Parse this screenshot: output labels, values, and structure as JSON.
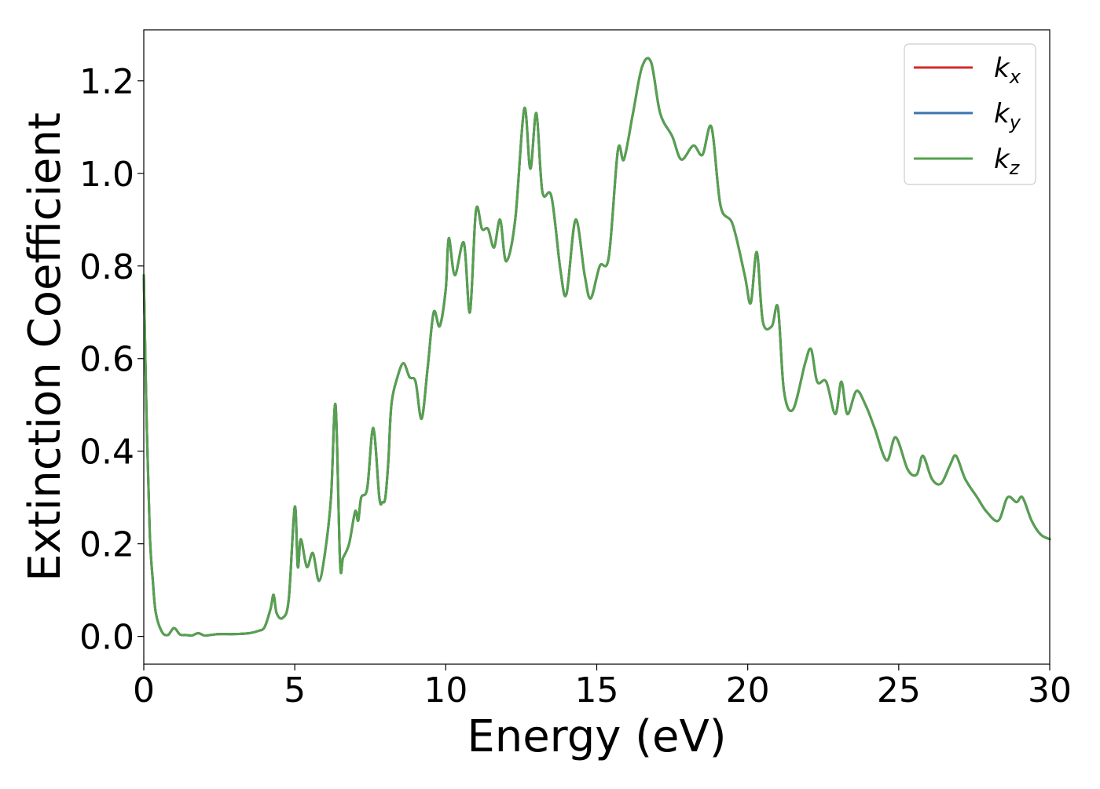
{
  "chart_data": {
    "type": "line",
    "title": "",
    "xlabel": "Energy (eV)",
    "ylabel": "Extinction Coefficient",
    "xlim": [
      0,
      30
    ],
    "ylim": [
      -0.06,
      1.31
    ],
    "xticks": [
      0,
      5,
      10,
      15,
      20,
      25,
      30
    ],
    "xtick_labels": [
      "0",
      "5",
      "10",
      "15",
      "20",
      "25",
      "30"
    ],
    "yticks": [
      0.0,
      0.2,
      0.4,
      0.6,
      0.8,
      1.0,
      1.2
    ],
    "ytick_labels": [
      "0.0",
      "0.2",
      "0.4",
      "0.6",
      "0.8",
      "1.0",
      "1.2"
    ],
    "grid": false,
    "legend": {
      "placement": "top-right",
      "entries": [
        {
          "base": "k",
          "sub": "x",
          "color": "#d62728"
        },
        {
          "base": "k",
          "sub": "y",
          "color": "#3b75af"
        },
        {
          "base": "k",
          "sub": "z",
          "color": "#55a14e"
        }
      ]
    },
    "x": [
      0.0,
      0.1,
      0.2,
      0.3,
      0.4,
      0.6,
      0.8,
      1.0,
      1.2,
      1.4,
      1.6,
      1.8,
      2.0,
      2.2,
      2.5,
      3.0,
      3.5,
      3.8,
      4.0,
      4.2,
      4.3,
      4.4,
      4.6,
      4.8,
      5.0,
      5.1,
      5.2,
      5.4,
      5.6,
      5.8,
      6.0,
      6.2,
      6.35,
      6.5,
      6.6,
      6.8,
      7.0,
      7.1,
      7.2,
      7.4,
      7.6,
      7.8,
      7.9,
      8.0,
      8.1,
      8.2,
      8.4,
      8.6,
      8.8,
      9.0,
      9.2,
      9.4,
      9.6,
      9.8,
      10.0,
      10.1,
      10.3,
      10.6,
      10.8,
      11.0,
      11.2,
      11.4,
      11.6,
      11.8,
      12.0,
      12.3,
      12.6,
      12.8,
      13.0,
      13.2,
      13.5,
      13.8,
      14.0,
      14.3,
      14.6,
      14.8,
      15.1,
      15.4,
      15.7,
      15.9,
      16.2,
      16.5,
      16.8,
      17.1,
      17.5,
      17.8,
      18.2,
      18.5,
      18.8,
      19.1,
      19.5,
      19.9,
      20.1,
      20.3,
      20.5,
      20.8,
      21.0,
      21.2,
      21.5,
      21.9,
      22.1,
      22.3,
      22.6,
      22.9,
      23.1,
      23.3,
      23.6,
      23.9,
      24.2,
      24.6,
      24.9,
      25.3,
      25.6,
      25.8,
      26.1,
      26.4,
      26.7,
      26.9,
      27.2,
      27.6,
      27.9,
      28.3,
      28.6,
      28.9,
      29.1,
      29.4,
      29.7,
      30.0
    ],
    "series": [
      {
        "name": "k_x",
        "color": "#d62728",
        "values": [
          0.78,
          0.45,
          0.22,
          0.12,
          0.05,
          0.01,
          0.003,
          0.018,
          0.004,
          0.003,
          0.002,
          0.007,
          0.002,
          0.003,
          0.005,
          0.005,
          0.007,
          0.012,
          0.02,
          0.06,
          0.09,
          0.05,
          0.04,
          0.08,
          0.28,
          0.15,
          0.21,
          0.15,
          0.18,
          0.12,
          0.18,
          0.3,
          0.5,
          0.16,
          0.17,
          0.2,
          0.27,
          0.25,
          0.3,
          0.32,
          0.45,
          0.3,
          0.29,
          0.3,
          0.38,
          0.5,
          0.56,
          0.59,
          0.56,
          0.55,
          0.47,
          0.58,
          0.7,
          0.67,
          0.75,
          0.86,
          0.78,
          0.85,
          0.7,
          0.92,
          0.88,
          0.88,
          0.84,
          0.9,
          0.81,
          0.9,
          1.14,
          1.01,
          1.13,
          0.96,
          0.95,
          0.79,
          0.74,
          0.9,
          0.78,
          0.73,
          0.8,
          0.82,
          1.05,
          1.03,
          1.13,
          1.23,
          1.24,
          1.13,
          1.08,
          1.03,
          1.06,
          1.04,
          1.1,
          0.93,
          0.89,
          0.78,
          0.72,
          0.83,
          0.68,
          0.67,
          0.71,
          0.53,
          0.49,
          0.59,
          0.62,
          0.55,
          0.55,
          0.48,
          0.55,
          0.48,
          0.53,
          0.5,
          0.45,
          0.38,
          0.43,
          0.36,
          0.35,
          0.39,
          0.34,
          0.33,
          0.37,
          0.39,
          0.34,
          0.3,
          0.27,
          0.25,
          0.3,
          0.29,
          0.3,
          0.25,
          0.22,
          0.21
        ]
      },
      {
        "name": "k_y",
        "color": "#3b75af",
        "values": [
          0.78,
          0.45,
          0.22,
          0.12,
          0.05,
          0.01,
          0.003,
          0.018,
          0.004,
          0.003,
          0.002,
          0.007,
          0.002,
          0.003,
          0.005,
          0.005,
          0.007,
          0.012,
          0.02,
          0.06,
          0.09,
          0.05,
          0.04,
          0.08,
          0.28,
          0.15,
          0.21,
          0.15,
          0.18,
          0.12,
          0.18,
          0.3,
          0.5,
          0.16,
          0.17,
          0.2,
          0.27,
          0.25,
          0.3,
          0.32,
          0.45,
          0.3,
          0.29,
          0.3,
          0.38,
          0.5,
          0.56,
          0.59,
          0.56,
          0.55,
          0.47,
          0.58,
          0.7,
          0.67,
          0.75,
          0.86,
          0.78,
          0.85,
          0.7,
          0.92,
          0.88,
          0.88,
          0.84,
          0.9,
          0.81,
          0.9,
          1.14,
          1.01,
          1.13,
          0.96,
          0.95,
          0.79,
          0.74,
          0.9,
          0.78,
          0.73,
          0.8,
          0.82,
          1.05,
          1.03,
          1.13,
          1.23,
          1.24,
          1.13,
          1.08,
          1.03,
          1.06,
          1.04,
          1.1,
          0.93,
          0.89,
          0.78,
          0.72,
          0.83,
          0.68,
          0.67,
          0.71,
          0.53,
          0.49,
          0.59,
          0.62,
          0.55,
          0.55,
          0.48,
          0.55,
          0.48,
          0.53,
          0.5,
          0.45,
          0.38,
          0.43,
          0.36,
          0.35,
          0.39,
          0.34,
          0.33,
          0.37,
          0.39,
          0.34,
          0.3,
          0.27,
          0.25,
          0.3,
          0.29,
          0.3,
          0.25,
          0.22,
          0.21
        ]
      },
      {
        "name": "k_z",
        "color": "#55a14e",
        "values": [
          0.78,
          0.45,
          0.22,
          0.12,
          0.05,
          0.01,
          0.003,
          0.018,
          0.004,
          0.003,
          0.002,
          0.007,
          0.002,
          0.003,
          0.005,
          0.005,
          0.007,
          0.012,
          0.02,
          0.06,
          0.09,
          0.05,
          0.04,
          0.08,
          0.28,
          0.15,
          0.21,
          0.15,
          0.18,
          0.12,
          0.18,
          0.3,
          0.5,
          0.16,
          0.17,
          0.2,
          0.27,
          0.25,
          0.3,
          0.32,
          0.45,
          0.3,
          0.29,
          0.3,
          0.38,
          0.5,
          0.56,
          0.59,
          0.56,
          0.55,
          0.47,
          0.58,
          0.7,
          0.67,
          0.75,
          0.86,
          0.78,
          0.85,
          0.7,
          0.92,
          0.88,
          0.88,
          0.84,
          0.9,
          0.81,
          0.9,
          1.14,
          1.01,
          1.13,
          0.96,
          0.95,
          0.79,
          0.74,
          0.9,
          0.78,
          0.73,
          0.8,
          0.82,
          1.05,
          1.03,
          1.13,
          1.23,
          1.24,
          1.13,
          1.08,
          1.03,
          1.06,
          1.04,
          1.1,
          0.93,
          0.89,
          0.78,
          0.72,
          0.83,
          0.68,
          0.67,
          0.71,
          0.53,
          0.49,
          0.59,
          0.62,
          0.55,
          0.55,
          0.48,
          0.55,
          0.48,
          0.53,
          0.5,
          0.45,
          0.38,
          0.43,
          0.36,
          0.35,
          0.39,
          0.34,
          0.33,
          0.37,
          0.39,
          0.34,
          0.3,
          0.27,
          0.25,
          0.3,
          0.29,
          0.3,
          0.25,
          0.22,
          0.21
        ]
      }
    ]
  }
}
